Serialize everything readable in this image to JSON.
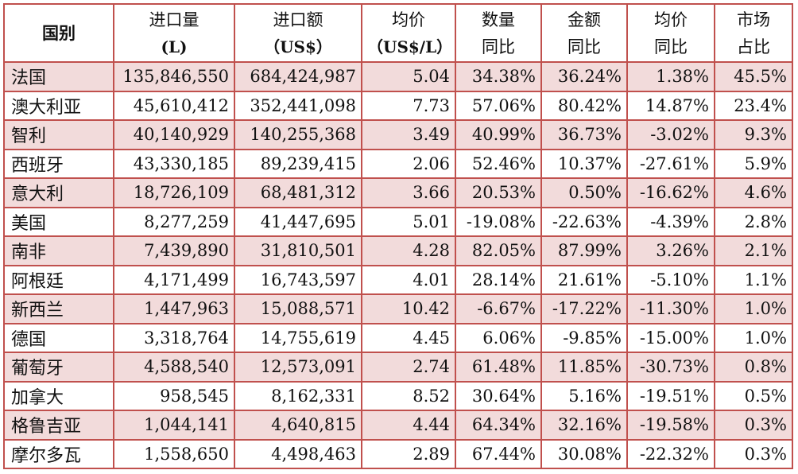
{
  "table": {
    "headers": [
      {
        "line1": "国别",
        "line2": ""
      },
      {
        "line1": "进口量",
        "line2": "(L)"
      },
      {
        "line1": "进口额",
        "line2": "（US$）"
      },
      {
        "line1": "均价",
        "line2": "（US$/L）"
      },
      {
        "line1": "数量",
        "line2": "同比"
      },
      {
        "line1": "金额",
        "line2": "同比"
      },
      {
        "line1": "均价",
        "line2": "同比"
      },
      {
        "line1": "市场",
        "line2": "占比"
      }
    ],
    "rows": [
      [
        "法国",
        "135,846,550",
        "684,424,987",
        "5.04",
        "34.38%",
        "36.24%",
        "1.38%",
        "45.5%"
      ],
      [
        "澳大利亚",
        "45,610,412",
        "352,441,098",
        "7.73",
        "57.06%",
        "80.42%",
        "14.87%",
        "23.4%"
      ],
      [
        "智利",
        "40,140,929",
        "140,255,368",
        "3.49",
        "40.99%",
        "36.73%",
        "-3.02%",
        "9.3%"
      ],
      [
        "西班牙",
        "43,330,185",
        "89,239,415",
        "2.06",
        "52.46%",
        "10.37%",
        "-27.61%",
        "5.9%"
      ],
      [
        "意大利",
        "18,726,109",
        "68,481,312",
        "3.66",
        "20.53%",
        "0.50%",
        "-16.62%",
        "4.6%"
      ],
      [
        "美国",
        "8,277,259",
        "41,447,695",
        "5.01",
        "-19.08%",
        "-22.63%",
        "-4.39%",
        "2.8%"
      ],
      [
        "南非",
        "7,439,890",
        "31,810,501",
        "4.28",
        "82.05%",
        "87.99%",
        "3.26%",
        "2.1%"
      ],
      [
        "阿根廷",
        "4,171,499",
        "16,743,597",
        "4.01",
        "28.14%",
        "21.61%",
        "-5.10%",
        "1.1%"
      ],
      [
        "新西兰",
        "1,447,963",
        "15,088,571",
        "10.42",
        "-6.67%",
        "-17.22%",
        "-11.30%",
        "1.0%"
      ],
      [
        "德国",
        "3,318,764",
        "14,755,619",
        "4.45",
        "6.06%",
        "-9.85%",
        "-15.00%",
        "1.0%"
      ],
      [
        "葡萄牙",
        "4,588,540",
        "12,573,091",
        "2.74",
        "61.48%",
        "11.85%",
        "-30.73%",
        "0.8%"
      ],
      [
        "加拿大",
        "958,545",
        "8,162,331",
        "8.52",
        "30.64%",
        "5.16%",
        "-19.51%",
        "0.5%"
      ],
      [
        "格鲁吉亚",
        "1,044,141",
        "4,640,815",
        "4.44",
        "64.34%",
        "32.16%",
        "-19.58%",
        "0.3%"
      ],
      [
        "摩尔多瓦",
        "1,558,650",
        "4,498,463",
        "2.89",
        "67.44%",
        "30.08%",
        "-22.32%",
        "0.3%"
      ]
    ]
  }
}
